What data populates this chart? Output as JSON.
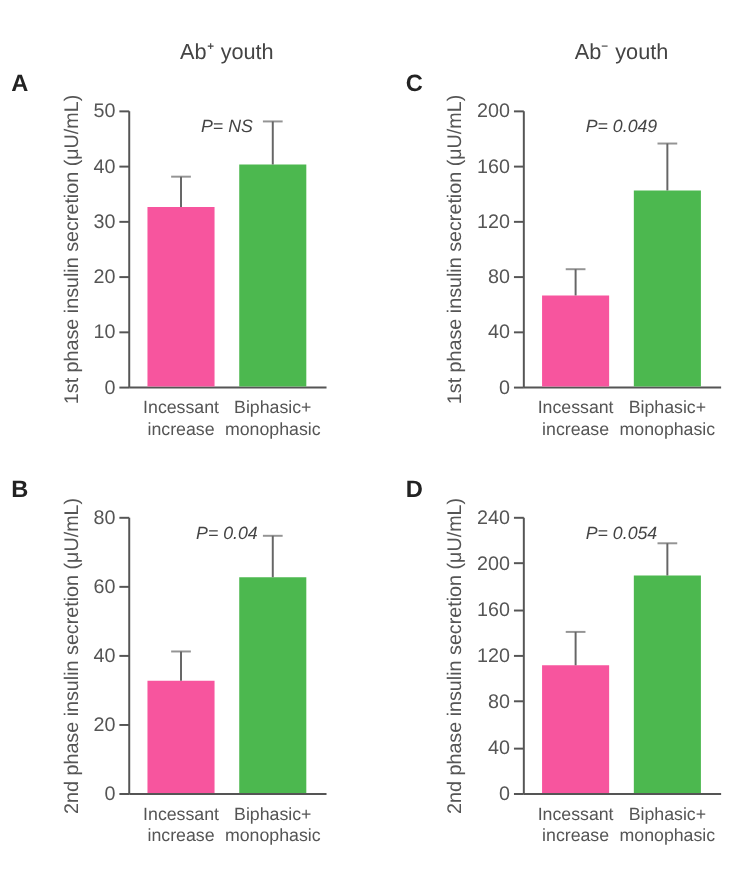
{
  "chart_data": [
    {
      "type": "bar",
      "title": "Ab⁺ youth",
      "ylabel": "1st phase insulin secretion (μU/mL)",
      "categories": [
        "Incessant increase",
        "Biphasic+ monophasic"
      ],
      "values": [
        32.5,
        40.2
      ],
      "colors": [
        "#f7559e",
        "#4cb84f"
      ],
      "errors": [
        [
          32.5,
          38
        ],
        [
          40.2,
          48
        ]
      ],
      "ylim": [
        0,
        50
      ],
      "yticks": [
        0,
        10,
        20,
        30,
        40,
        50
      ],
      "grid": false,
      "annotations": [
        "A",
        "P= NS"
      ]
    },
    {
      "type": "bar",
      "title": "Ab⁻ youth",
      "ylabel": "1st phase insulin secretion (μU/mL)",
      "categories": [
        "Incessant increase",
        "Biphasic+ monophasic"
      ],
      "values": [
        66,
        142
      ],
      "colors": [
        "#f7559e",
        "#4cb84f"
      ],
      "errors": [
        [
          66,
          85
        ],
        [
          142,
          176
        ]
      ],
      "ylim": [
        0,
        200
      ],
      "yticks": [
        0,
        40,
        80,
        120,
        160,
        200
      ],
      "grid": false,
      "annotations": [
        "C",
        "P= 0.049"
      ]
    },
    {
      "type": "bar",
      "ylabel": "2nd phase insulin secretion (μU/mL)",
      "categories": [
        "Incessant increase",
        "Biphasic+ monophasic"
      ],
      "values": [
        32.5,
        62.5
      ],
      "colors": [
        "#f7559e",
        "#4cb84f"
      ],
      "errors": [
        [
          32.5,
          41
        ],
        [
          62.5,
          74.5
        ]
      ],
      "ylim": [
        0,
        80
      ],
      "yticks": [
        0,
        20,
        40,
        60,
        80
      ],
      "grid": false,
      "annotations": [
        "B",
        "P= 0.04"
      ]
    },
    {
      "type": "bar",
      "ylabel": "2nd phase insulin secretion (μU/mL)",
      "categories": [
        "Incessant increase",
        "Biphasic+ monophasic"
      ],
      "values": [
        111,
        189
      ],
      "colors": [
        "#f7559e",
        "#4cb84f"
      ],
      "errors": [
        [
          111,
          140
        ],
        [
          189,
          217
        ]
      ],
      "ylim": [
        0,
        240
      ],
      "yticks": [
        0,
        40,
        80,
        120,
        160,
        200,
        240
      ],
      "grid": false,
      "annotations": [
        "D",
        "P= 0.054"
      ]
    }
  ]
}
